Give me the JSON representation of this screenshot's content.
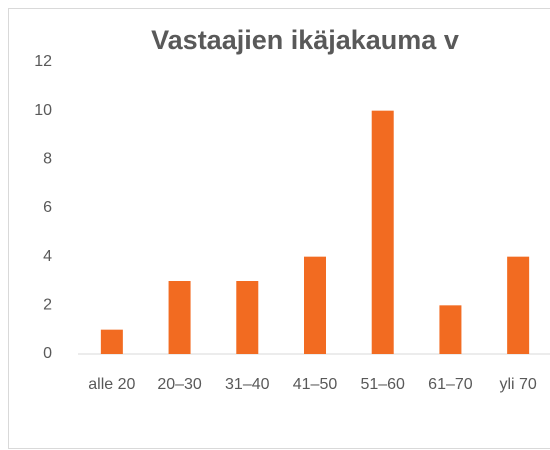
{
  "chart_data": {
    "type": "bar",
    "title": "Vastaajien ikäjakauma v",
    "categories": [
      "alle 20",
      "20–30",
      "31–40",
      "41–50",
      "51–60",
      "61–70",
      "yli 70"
    ],
    "values": [
      1,
      3,
      3,
      4,
      10,
      2,
      4
    ],
    "color": "#f26b21",
    "ylim": [
      0,
      12
    ],
    "yticks": [
      0,
      2,
      4,
      6,
      8,
      10,
      12
    ],
    "grid": false
  }
}
